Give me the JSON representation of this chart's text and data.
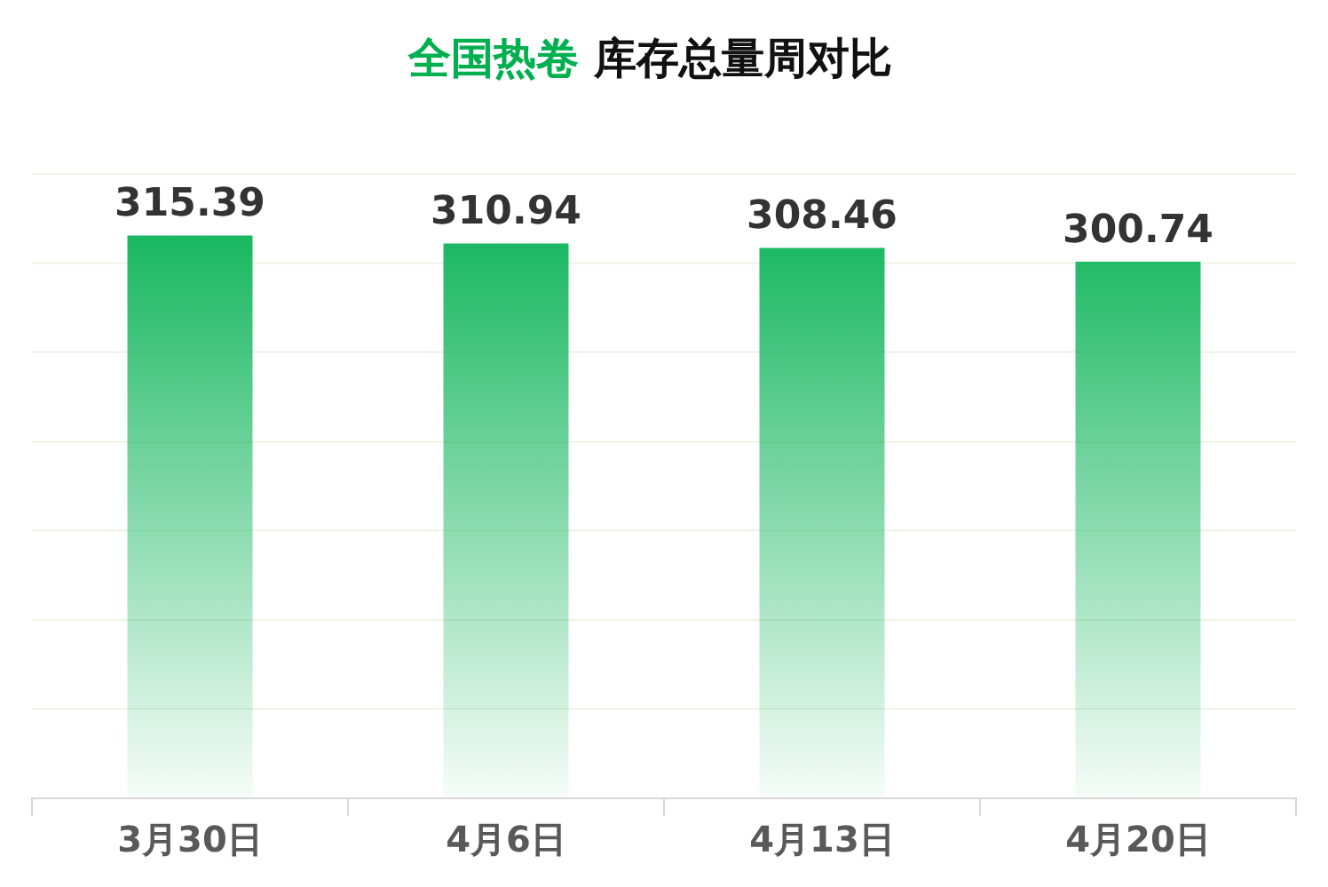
{
  "chart_data": {
    "type": "bar",
    "title": "全国热卷 库存总量周对比",
    "categories": [
      "3月30日",
      "4月6日",
      "4月13日",
      "4月20日"
    ],
    "values": [
      315.39,
      310.94,
      308.46,
      300.74
    ],
    "color": "#00b050",
    "grid": "y",
    "data_labels": true,
    "legend": false,
    "tick_labels": "x"
  }
}
